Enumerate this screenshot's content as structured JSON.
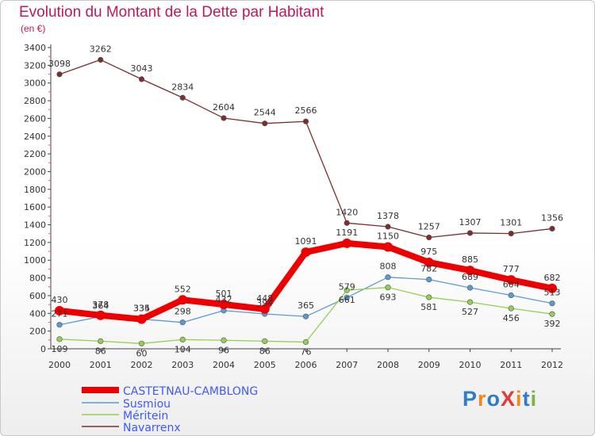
{
  "title": "Evolution du Montant de la Dette par Habitant",
  "subtitle": "(en €)",
  "logo": {
    "text": "ProXiti",
    "letters": [
      "P",
      "r",
      "o",
      "X",
      "i",
      "t",
      "i"
    ],
    "colors": [
      "#2e7dc8",
      "#f08a1c",
      "#2e7dc8",
      "#e53935",
      "#f08a1c",
      "#2e7dc8",
      "#7cb342"
    ]
  },
  "chart_data": {
    "type": "line",
    "categories": [
      "2000",
      "2001",
      "2002",
      "2003",
      "2004",
      "2005",
      "2006",
      "2007",
      "2008",
      "2009",
      "2010",
      "2011",
      "2012"
    ],
    "ylim": [
      0,
      3400
    ],
    "yticks": [
      0,
      200,
      400,
      600,
      800,
      1000,
      1200,
      1400,
      1600,
      1800,
      2000,
      2200,
      2400,
      2600,
      2800,
      3000,
      3200,
      3400
    ],
    "grid": false,
    "legend_position": "bottom-left",
    "series": [
      {
        "name": "CASTETNAU-CAMBLONG",
        "color": "#ee0000",
        "values": [
          430,
          378,
          334,
          552,
          501,
          448,
          1091,
          1191,
          1150,
          975,
          885,
          777,
          682
        ]
      },
      {
        "name": "Susmiou",
        "color": "#5b9bd5",
        "values": [
          271,
          364,
          335,
          298,
          432,
          394,
          365,
          579,
          808,
          782,
          689,
          604,
          513
        ]
      },
      {
        "name": "Méritein",
        "color": "#92d050",
        "values": [
          109,
          86,
          60,
          104,
          96,
          86,
          76,
          661,
          693,
          581,
          527,
          456,
          392
        ]
      },
      {
        "name": "Navarrenx",
        "color": "#7b2e2e",
        "values": [
          3098,
          3262,
          3043,
          2834,
          2604,
          2544,
          2566,
          1420,
          1378,
          1257,
          1307,
          1301,
          1356
        ]
      }
    ]
  }
}
